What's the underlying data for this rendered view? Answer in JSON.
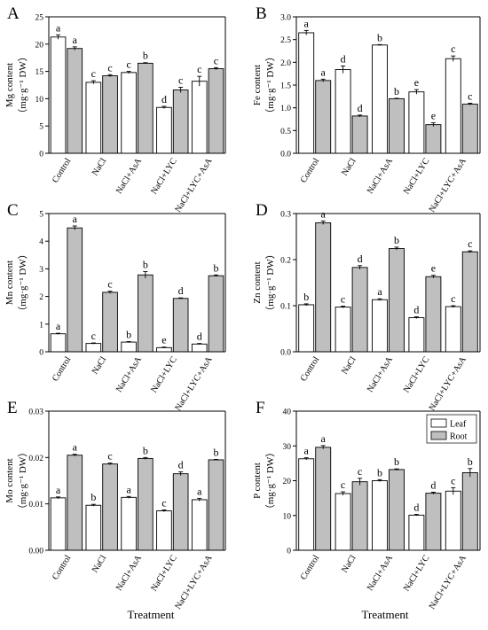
{
  "x_axis_title": "Treatment",
  "legend": {
    "items": [
      "Leaf",
      "Root"
    ],
    "colors": [
      "#ffffff",
      "#bfbfbf"
    ]
  },
  "colors": {
    "leaf": "#ffffff",
    "root": "#bfbfbf",
    "axis": "#000000"
  },
  "chart_data": [
    {
      "type": "bar",
      "panel_label": "A",
      "ylabel_lines": [
        "Mg content",
        "（mg·g⁻¹ DW）"
      ],
      "categories": [
        "Control",
        "NaCl",
        "NaCl+AsA",
        "NaCl+LYC",
        "NaCl+LYC+AsA"
      ],
      "series": [
        {
          "name": "Leaf",
          "values": [
            21.3,
            13.0,
            14.8,
            8.4,
            13.2
          ],
          "errors": [
            0.4,
            0.3,
            0.2,
            0.2,
            0.9
          ],
          "letters": [
            "a",
            "c",
            "c",
            "d",
            "c"
          ]
        },
        {
          "name": "Root",
          "values": [
            19.2,
            14.2,
            16.5,
            11.6,
            15.5
          ],
          "errors": [
            0.3,
            0.2,
            0.1,
            0.5,
            0.2
          ],
          "letters": [
            "a",
            "c",
            "b",
            "c",
            "c"
          ]
        }
      ],
      "ylim": [
        0,
        25
      ],
      "yticks": [
        0,
        5,
        10,
        15,
        20,
        25
      ],
      "ytick_labels": [
        "0",
        "5",
        "10",
        "15",
        "20",
        "25"
      ]
    },
    {
      "type": "bar",
      "panel_label": "B",
      "ylabel_lines": [
        "Fe content",
        "（mg·g⁻¹ DW）"
      ],
      "categories": [
        "Control",
        "NaCl",
        "NaCl+AsA",
        "NaCl+LYC",
        "NaCl+LYC+AsA"
      ],
      "series": [
        {
          "name": "Leaf",
          "values": [
            2.65,
            1.84,
            2.38,
            1.35,
            2.08
          ],
          "errors": [
            0.05,
            0.08,
            0.01,
            0.05,
            0.06
          ],
          "letters": [
            "a",
            "d",
            "b",
            "e",
            "c"
          ]
        },
        {
          "name": "Root",
          "values": [
            1.6,
            0.82,
            1.2,
            0.63,
            1.08
          ],
          "errors": [
            0.03,
            0.02,
            0.01,
            0.04,
            0.02
          ],
          "letters": [
            "a",
            "d",
            "b",
            "e",
            "c"
          ]
        }
      ],
      "ylim": [
        0,
        3.0
      ],
      "yticks": [
        0,
        0.5,
        1.0,
        1.5,
        2.0,
        2.5,
        3.0
      ],
      "ytick_labels": [
        "0.0",
        "0.5",
        "1.0",
        "1.5",
        "2.0",
        "2.5",
        "3.0"
      ]
    },
    {
      "type": "bar",
      "panel_label": "C",
      "ylabel_lines": [
        "Mn content",
        "（mg·g⁻¹ DW）"
      ],
      "categories": [
        "Control",
        "NaCl",
        "NaCl+AsA",
        "NaCl+LYC",
        "NaCl+LYC+AsA"
      ],
      "series": [
        {
          "name": "Leaf",
          "values": [
            0.65,
            0.3,
            0.35,
            0.15,
            0.28
          ],
          "errors": [
            0.02,
            0.02,
            0.02,
            0.02,
            0.02
          ],
          "letters": [
            "a",
            "c",
            "b",
            "e",
            "d"
          ]
        },
        {
          "name": "Root",
          "values": [
            4.48,
            2.15,
            2.78,
            1.93,
            2.75
          ],
          "errors": [
            0.07,
            0.04,
            0.12,
            0.02,
            0.03
          ],
          "letters": [
            "a",
            "c",
            "b",
            "d",
            "b"
          ]
        }
      ],
      "ylim": [
        0,
        5
      ],
      "yticks": [
        0,
        1,
        2,
        3,
        4,
        5
      ],
      "ytick_labels": [
        "0",
        "1",
        "2",
        "3",
        "4",
        "5"
      ]
    },
    {
      "type": "bar",
      "panel_label": "D",
      "ylabel_lines": [
        "Zn content",
        "（mg·g⁻¹ DW）"
      ],
      "categories": [
        "Control",
        "NaCl",
        "NaCl+AsA",
        "NaCl+LYC",
        "NaCl+LYC+AsA"
      ],
      "series": [
        {
          "name": "Leaf",
          "values": [
            0.102,
            0.097,
            0.113,
            0.074,
            0.098
          ],
          "errors": [
            0.002,
            0.002,
            0.002,
            0.002,
            0.002
          ],
          "letters": [
            "b",
            "c",
            "a",
            "d",
            "c"
          ]
        },
        {
          "name": "Root",
          "values": [
            0.28,
            0.183,
            0.224,
            0.163,
            0.217
          ],
          "errors": [
            0.004,
            0.004,
            0.003,
            0.003,
            0.002
          ],
          "letters": [
            "a",
            "d",
            "b",
            "e",
            "c"
          ]
        }
      ],
      "ylim": [
        0,
        0.3
      ],
      "yticks": [
        0,
        0.1,
        0.2,
        0.3
      ],
      "ytick_labels": [
        "0.0",
        "0.1",
        "0.2",
        "0.3"
      ]
    },
    {
      "type": "bar",
      "panel_label": "E",
      "ylabel_lines": [
        "Mo content",
        "（mg·g⁻¹ DW）"
      ],
      "categories": [
        "Control",
        "NaCl",
        "NaCl+AsA",
        "NaCl+LYC",
        "NaCl+LYC+AsA"
      ],
      "series": [
        {
          "name": "Leaf",
          "values": [
            0.0113,
            0.0097,
            0.0114,
            0.0085,
            0.0109
          ],
          "errors": [
            0.0002,
            0.0002,
            0.0002,
            0.0002,
            0.0003
          ],
          "letters": [
            "a",
            "b",
            "a",
            "c",
            "a"
          ]
        },
        {
          "name": "Root",
          "values": [
            0.0205,
            0.0186,
            0.0198,
            0.0165,
            0.0195
          ],
          "errors": [
            0.0002,
            0.0002,
            0.0002,
            0.0004,
            0.0001
          ],
          "letters": [
            "a",
            "c",
            "b",
            "d",
            "b"
          ]
        }
      ],
      "ylim": [
        0,
        0.03
      ],
      "yticks": [
        0,
        0.01,
        0.02,
        0.03
      ],
      "ytick_labels": [
        "0.00",
        "0.01",
        "0.02",
        "0.03"
      ]
    },
    {
      "type": "bar",
      "panel_label": "F",
      "ylabel_lines": [
        "P content",
        "（mg·g⁻¹ DW）"
      ],
      "categories": [
        "Control",
        "NaCl",
        "NaCl+AsA",
        "NaCl+LYC",
        "NaCl+LYC+AsA"
      ],
      "series": [
        {
          "name": "Leaf",
          "values": [
            26.3,
            16.3,
            20.0,
            10.1,
            17.0
          ],
          "errors": [
            0.3,
            0.5,
            0.3,
            0.2,
            1.0
          ],
          "letters": [
            "a",
            "c",
            "b",
            "d",
            "c"
          ]
        },
        {
          "name": "Root",
          "values": [
            29.6,
            19.7,
            23.2,
            16.4,
            22.3
          ],
          "errors": [
            0.5,
            1.0,
            0.2,
            0.3,
            1.2
          ],
          "letters": [
            "a",
            "c",
            "b",
            "d",
            "b"
          ]
        }
      ],
      "ylim": [
        0,
        40
      ],
      "yticks": [
        0,
        10,
        20,
        30,
        40
      ],
      "ytick_labels": [
        "0",
        "10",
        "20",
        "30",
        "40"
      ],
      "show_legend": true
    }
  ]
}
